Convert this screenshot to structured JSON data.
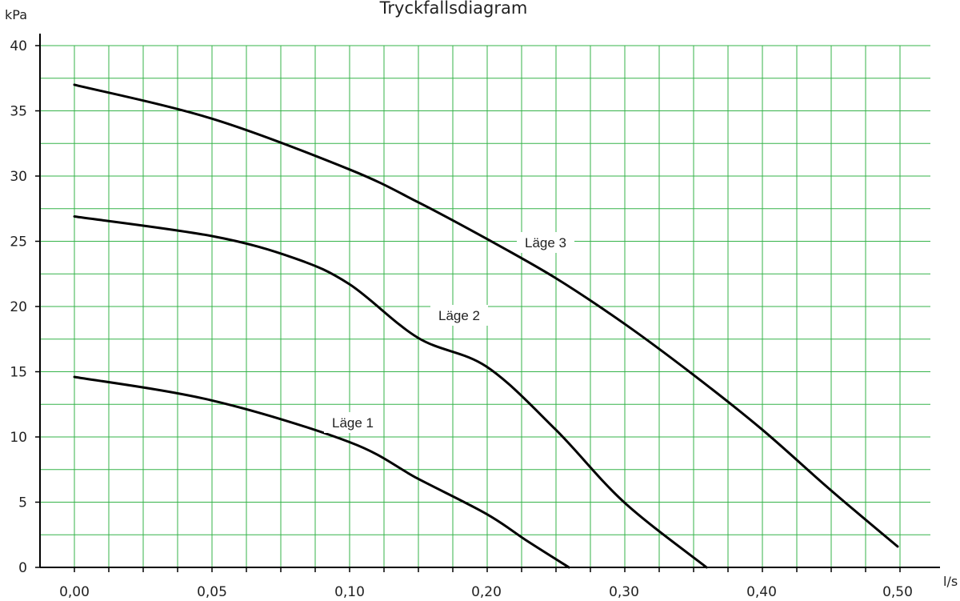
{
  "chart_data": {
    "type": "line",
    "title": "Tryckfallsdiagram",
    "ylabel": "kPa",
    "xlabel": "l/s",
    "ylim": [
      0,
      40
    ],
    "y_ticks": [
      0,
      5,
      10,
      15,
      20,
      25,
      30,
      35,
      40
    ],
    "x_tick_labels": [
      "0,00",
      "0,05",
      "0,10",
      "0,20",
      "0,30",
      "0,40",
      "0,50"
    ],
    "grid": true,
    "grid_color": "#36b34a",
    "line_color": "#000000",
    "series": [
      {
        "name": "Läge 1",
        "points": [
          [
            0.0,
            14.6
          ],
          [
            0.05,
            12.8
          ],
          [
            0.1,
            9.6
          ],
          [
            0.15,
            6.8
          ],
          [
            0.2,
            4.1
          ],
          [
            0.23,
            2.0
          ],
          [
            0.26,
            0.0
          ]
        ]
      },
      {
        "name": "Läge 2",
        "points": [
          [
            0.0,
            26.9
          ],
          [
            0.05,
            25.4
          ],
          [
            0.08,
            23.7
          ],
          [
            0.1,
            21.7
          ],
          [
            0.15,
            17.6
          ],
          [
            0.2,
            15.4
          ],
          [
            0.25,
            10.6
          ],
          [
            0.3,
            5.0
          ],
          [
            0.36,
            0.0
          ]
        ]
      },
      {
        "name": "Läge 3",
        "points": [
          [
            0.0,
            37.0
          ],
          [
            0.05,
            34.4
          ],
          [
            0.1,
            30.5
          ],
          [
            0.15,
            28.0
          ],
          [
            0.2,
            25.2
          ],
          [
            0.25,
            22.2
          ],
          [
            0.3,
            18.7
          ],
          [
            0.35,
            14.8
          ],
          [
            0.4,
            10.6
          ],
          [
            0.45,
            6.0
          ],
          [
            0.5,
            1.6
          ]
        ]
      }
    ]
  }
}
